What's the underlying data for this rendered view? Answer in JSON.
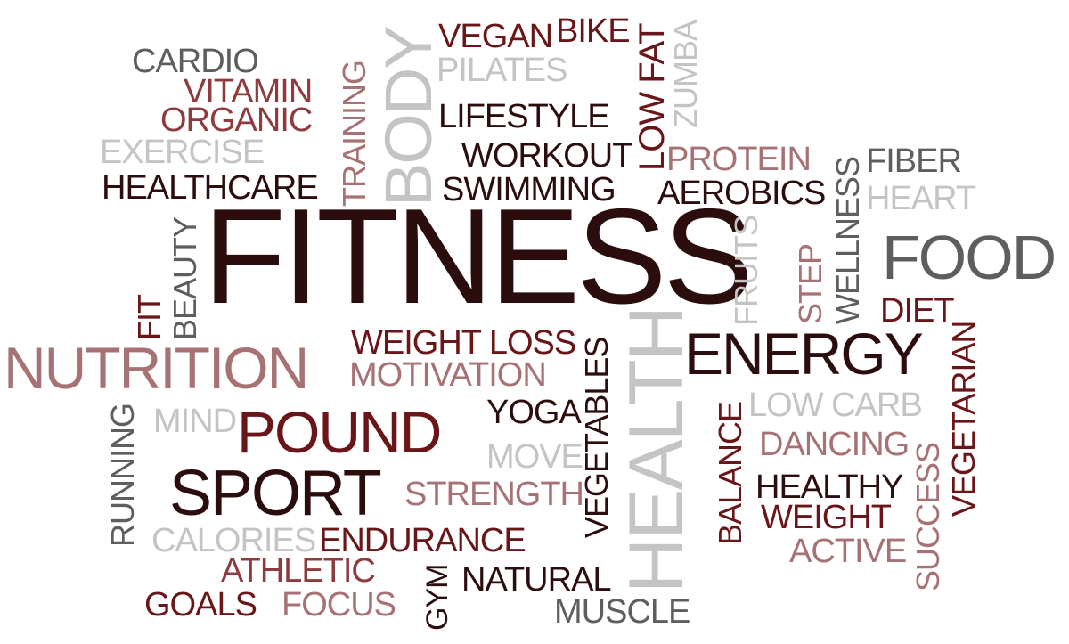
{
  "words": {
    "fitness": "FITNESS",
    "nutrition": "NUTRITION",
    "food": "FOOD",
    "energy": "ENERGY",
    "pound": "POUND",
    "sport": "SPORT",
    "health": "HEALTH",
    "body": "BODY",
    "vegan": "VEGAN",
    "bike": "BIKE",
    "pilates": "PILATES",
    "zumba": "ZUMBA",
    "low_fat": "LOW FAT",
    "cardio": "CARDIO",
    "vitamin": "VITAMIN",
    "organic": "ORGANIC",
    "exercise": "EXERCISE",
    "healthcare": "HEALTHCARE",
    "training": "TRAINING",
    "lifestyle": "LIFESTYLE",
    "workout": "WORKOUT",
    "swimming": "SWIMMING",
    "protein": "PROTEIN",
    "aerobics": "AEROBICS",
    "fiber": "FIBER",
    "heart": "HEART",
    "wellness": "WELLNESS",
    "step": "STEP",
    "fruits": "FRUITS",
    "diet": "DIET",
    "beauty": "BEAUTY",
    "fit": "FIT",
    "weight_loss": "WEIGHT LOSS",
    "motivation": "MOTIVATION",
    "vegetables": "VEGETABLES",
    "yoga": "YOGA",
    "move": "MOVE",
    "mind": "MIND",
    "running": "RUNNING",
    "low_carb": "LOW CARB",
    "balance": "BALANCE",
    "dancing": "DANCING",
    "healthy": "HEALTHY",
    "weight": "WEIGHT",
    "active": "ACTIVE",
    "success": "SUCCESS",
    "vegetarian": "VEGETARIAN",
    "strength": "STRENGTH",
    "calories": "CALORIES",
    "endurance": "ENDURANCE",
    "athletic": "ATHLETIC",
    "natural": "NATURAL",
    "goals": "GOALS",
    "focus": "FOCUS",
    "gym": "GYM",
    "muscle": "MUSCLE"
  },
  "colors": {
    "dark_brown": "#2c0d0e",
    "dark_red": "#6a1518",
    "maroon": "#8f3b3e",
    "rose": "#a67274",
    "gray_dark": "#5e5e5e",
    "gray_mid": "#8d8d8d",
    "gray_light": "#c4c4c4",
    "background": "#ffffff"
  }
}
